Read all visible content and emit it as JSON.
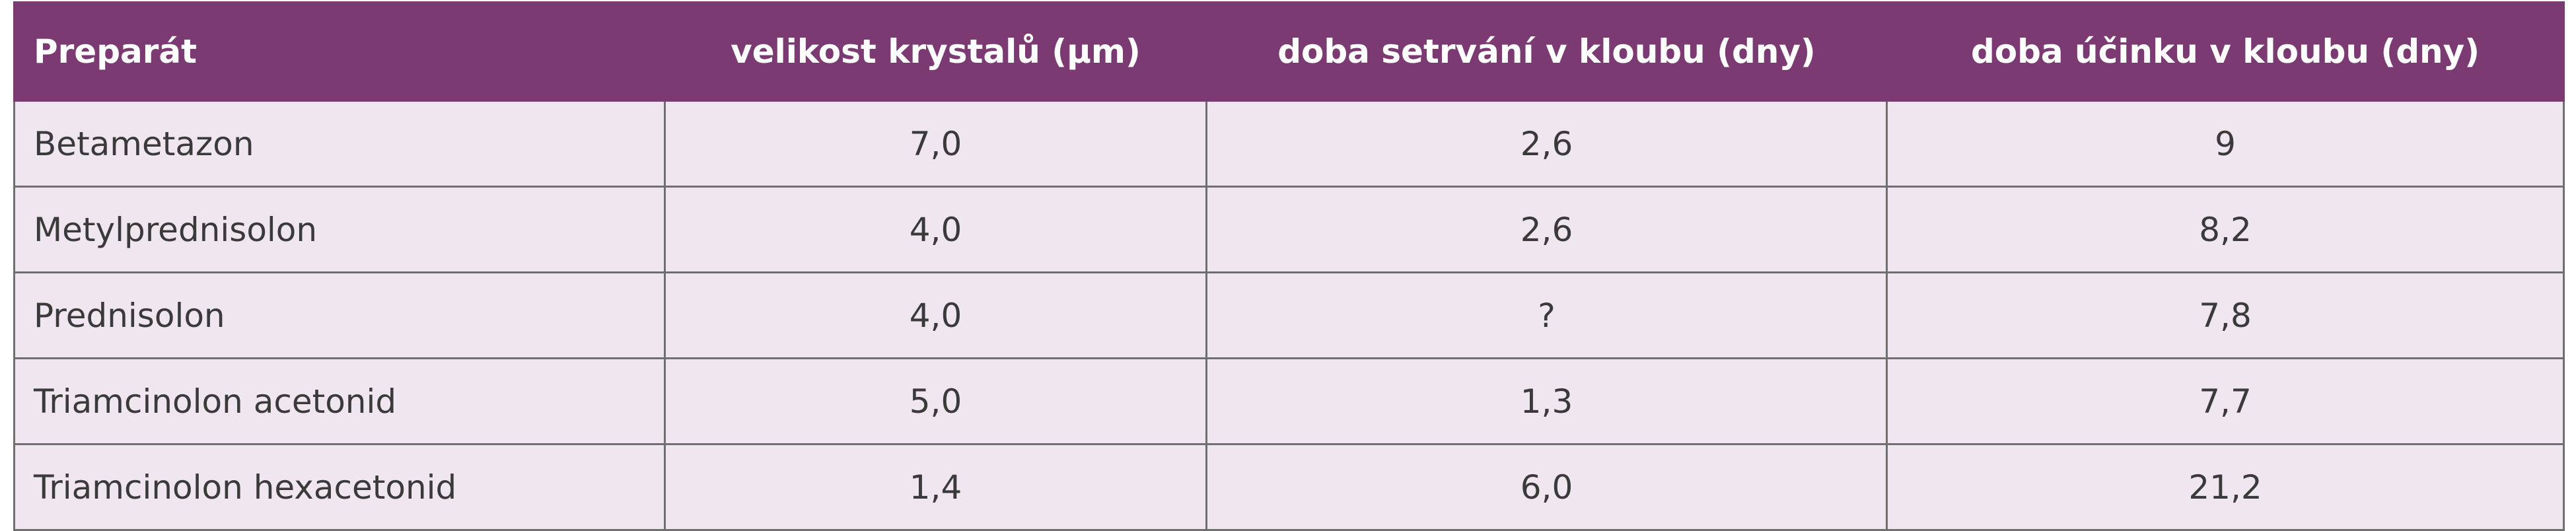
{
  "table": {
    "columns": [
      "Preparát",
      "velikost krystalů (µm)",
      "doba setrvání v kloubu (dny)",
      "doba účinku v kloubu (dny)"
    ],
    "rows": [
      [
        "Betametazon",
        "7,0",
        "2,6",
        "9"
      ],
      [
        "Metylprednisolon",
        "4,0",
        "2,6",
        "8,2"
      ],
      [
        "Prednisolon",
        "4,0",
        "?",
        "7,8"
      ],
      [
        "Triamcinolon acetonid",
        "5,0",
        "1,3",
        "7,7"
      ],
      [
        "Triamcinolon hexacetonid",
        "1,4",
        "6,0",
        "21,2"
      ]
    ]
  }
}
